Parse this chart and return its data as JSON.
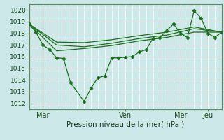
{
  "background_color": "#cce8e8",
  "grid_color": "#ffffff",
  "line_color": "#1a6e1a",
  "marker_color": "#1a6e1a",
  "xlabel": "Pression niveau de la mer( hPa )",
  "ylim": [
    1011.5,
    1020.5
  ],
  "yticks": [
    1012,
    1013,
    1014,
    1015,
    1016,
    1017,
    1018,
    1019,
    1020
  ],
  "xlim": [
    0,
    168
  ],
  "day_positions": [
    12,
    84,
    132,
    156
  ],
  "day_labels": [
    "Mar",
    "Ven",
    "Mer",
    "Jeu"
  ],
  "vline_positions": [
    12,
    84,
    156
  ],
  "series": [
    {
      "x": [
        0,
        6,
        12,
        18,
        24,
        30,
        36,
        48,
        54,
        60,
        66,
        72,
        78,
        84,
        90,
        96,
        102,
        108,
        114,
        120,
        126,
        132,
        138,
        144,
        150,
        156,
        162,
        168
      ],
      "y": [
        1018.8,
        1018.1,
        1017.0,
        1016.6,
        1015.9,
        1015.85,
        1013.8,
        1012.15,
        1013.3,
        1014.2,
        1014.35,
        1015.9,
        1015.9,
        1015.95,
        1016.0,
        1016.4,
        1016.6,
        1017.55,
        1017.6,
        1018.25,
        1018.8,
        1018.0,
        1017.65,
        1019.95,
        1019.3,
        1018.0,
        1017.65,
        1018.1
      ],
      "marker": "D",
      "markersize": 2.5
    },
    {
      "x": [
        0,
        24,
        48,
        72,
        96,
        120,
        144,
        168
      ],
      "y": [
        1018.8,
        1017.25,
        1017.2,
        1017.45,
        1017.8,
        1018.1,
        1018.55,
        1018.1
      ],
      "marker": "None",
      "markersize": 0
    },
    {
      "x": [
        0,
        24,
        48,
        72,
        96,
        120,
        144,
        168
      ],
      "y": [
        1018.8,
        1017.0,
        1016.85,
        1017.15,
        1017.55,
        1017.85,
        1018.4,
        1018.1
      ],
      "marker": "None",
      "markersize": 0
    },
    {
      "x": [
        0,
        24,
        48,
        72,
        96,
        120,
        144,
        168
      ],
      "y": [
        1018.8,
        1016.5,
        1016.7,
        1016.95,
        1017.35,
        1017.65,
        1018.1,
        1018.1
      ],
      "marker": "None",
      "markersize": 0
    }
  ]
}
